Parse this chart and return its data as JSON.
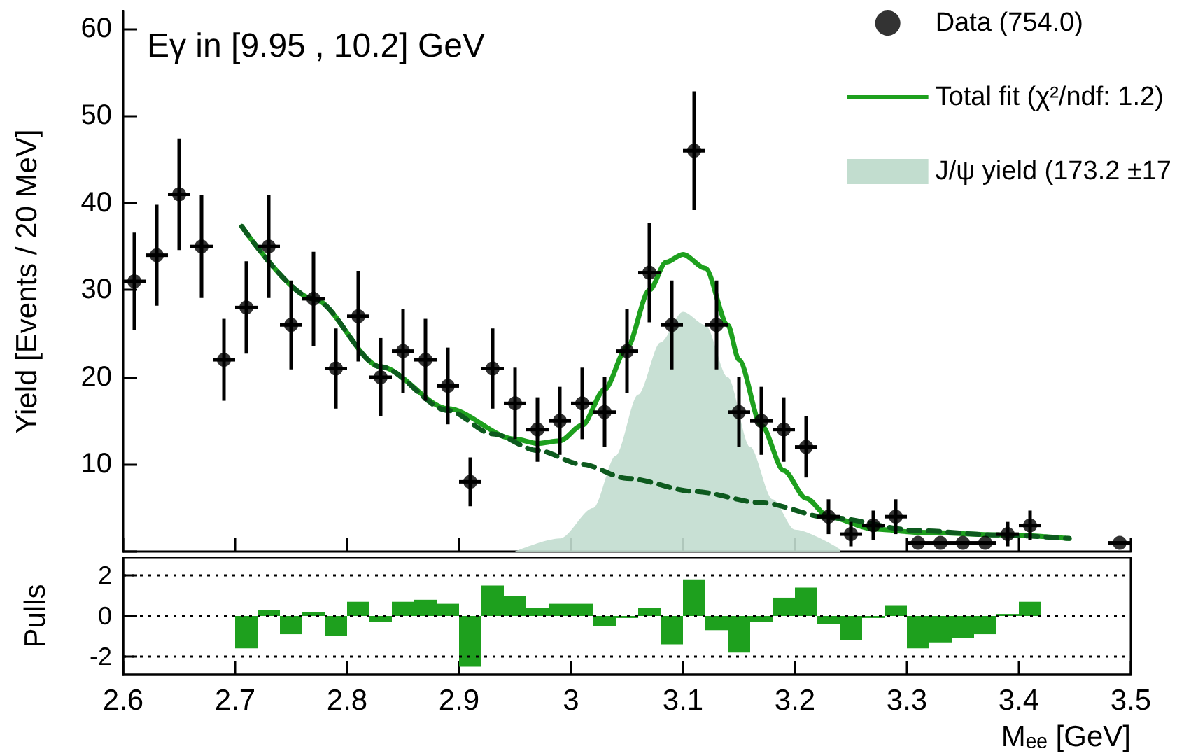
{
  "chart_data": [
    {
      "type": "scatter",
      "title": "Eγ in [9.95 , 10.2] GeV",
      "ylabel": "Yield [Events / 20 MeV]",
      "xlim": [
        2.6,
        3.5
      ],
      "ylim": [
        0,
        62
      ],
      "xticks": [
        2.6,
        2.7,
        2.8,
        2.9,
        3,
        3.1,
        3.2,
        3.3,
        3.4,
        3.5
      ],
      "yticks": [
        {
          "value": 0,
          "label": null
        },
        10,
        20,
        30,
        40,
        50,
        60
      ],
      "tick_labels": "y",
      "grid": false,
      "legend": "top right",
      "series": [
        {
          "type": "scatter",
          "name": "Data (754.0)",
          "color": "#000000",
          "marker": "circle",
          "x": [
            2.61,
            2.63,
            2.65,
            2.67,
            2.69,
            2.71,
            2.73,
            2.75,
            2.77,
            2.79,
            2.81,
            2.83,
            2.85,
            2.87,
            2.89,
            2.91,
            2.93,
            2.95,
            2.97,
            2.99,
            3.01,
            3.03,
            3.05,
            3.07,
            3.09,
            3.11,
            3.13,
            3.15,
            3.17,
            3.19,
            3.21,
            3.23,
            3.25,
            3.27,
            3.29,
            3.31,
            3.33,
            3.35,
            3.37,
            3.39,
            3.41,
            3.49
          ],
          "values": [
            31,
            34,
            41,
            35,
            22,
            28,
            35,
            26,
            29,
            21,
            27,
            20,
            23,
            22,
            19,
            8,
            21,
            17,
            14,
            15,
            17,
            16,
            23,
            32,
            26,
            46,
            26,
            16,
            15,
            14,
            12,
            4,
            2,
            3,
            4,
            1,
            1,
            1,
            1,
            2,
            3,
            1
          ],
          "errors": [
            5.6,
            5.8,
            6.4,
            5.9,
            4.7,
            5.3,
            5.9,
            5.1,
            5.4,
            4.6,
            5.2,
            4.5,
            4.8,
            4.7,
            4.4,
            2.8,
            4.6,
            4.1,
            3.7,
            3.9,
            4.1,
            4.0,
            4.8,
            5.7,
            5.1,
            6.8,
            5.1,
            4.0,
            3.9,
            3.7,
            3.5,
            2.0,
            1.4,
            1.7,
            2.0,
            null,
            null,
            null,
            null,
            1.4,
            1.7,
            null
          ],
          "xerrors": [
            0.01,
            0.01,
            0.01,
            0.01,
            0.01,
            0.01,
            0.01,
            0.01,
            0.01,
            0.01,
            0.01,
            0.01,
            0.01,
            0.01,
            0.01,
            0.01,
            0.01,
            0.01,
            0.01,
            0.01,
            0.01,
            0.01,
            0.01,
            0.01,
            0.01,
            0.01,
            0.01,
            0.01,
            0.01,
            0.01,
            0.01,
            0.01,
            0.01,
            0.01,
            0.01,
            0.01,
            0.01,
            0.01,
            0.01,
            0.01,
            0.01,
            0.01
          ]
        },
        {
          "type": "line",
          "name": "Total fit (χ²/ndf: 1.2)",
          "color": "#1ea01e",
          "line_style": "solid",
          "x": [
            2.706,
            2.77,
            2.83,
            2.89,
            2.95,
            2.97,
            2.99,
            3.01,
            3.03,
            3.05,
            3.07,
            3.085,
            3.1,
            3.12,
            3.14,
            3.15,
            3.17,
            3.19,
            3.21,
            3.23,
            3.27,
            3.31,
            3.39,
            3.445
          ],
          "values": [
            37.3,
            29,
            21.2,
            16.4,
            12.9,
            12.4,
            12.7,
            14.5,
            18.6,
            23.4,
            30,
            33.2,
            34.1,
            32.5,
            26,
            22,
            14.5,
            9.3,
            6.1,
            4,
            2.6,
            2.2,
            1.9,
            1.5
          ]
        },
        {
          "type": "line",
          "color": "#0d5a1e",
          "line_style": "dashed",
          "x": [
            2.706,
            2.77,
            2.83,
            2.89,
            2.93,
            2.97,
            3.01,
            3.05,
            3.11,
            3.17,
            3.23,
            3.31,
            3.38,
            3.445
          ],
          "values": [
            37.3,
            29,
            21.2,
            16.2,
            13.5,
            11.6,
            10,
            8.4,
            6.9,
            5.6,
            3.9,
            2.4,
            1.9,
            1.5
          ]
        },
        {
          "type": "area",
          "name": "J/ψ yield (173.2 ±17",
          "color": "#c2ddcf",
          "x": [
            2.95,
            2.99,
            3.02,
            3.04,
            3.06,
            3.08,
            3.1,
            3.12,
            3.14,
            3.16,
            3.18,
            3.2,
            3.24
          ],
          "values": [
            0,
            1.5,
            5,
            11,
            18,
            24,
            27.5,
            26,
            20,
            12,
            6,
            2.5,
            0.3
          ]
        }
      ]
    },
    {
      "type": "histogram",
      "ylabel": "Pulls",
      "xlabel": "Mₑₑ [GeV]",
      "color": "#1ea01e",
      "xlim": [
        2.6,
        3.5
      ],
      "ylim": [
        -2.9,
        2.9
      ],
      "xticks": [
        2.6,
        2.7,
        2.8,
        2.9,
        3,
        3.1,
        3.2,
        3.3,
        3.4,
        3.5
      ],
      "yticks": [
        -2,
        0,
        2
      ],
      "grid": false,
      "bins": [
        2.7,
        2.72,
        2.74,
        2.76,
        2.78,
        2.8,
        2.82,
        2.84,
        2.86,
        2.88,
        2.9,
        2.92,
        2.94,
        2.96,
        2.98,
        3.0,
        3.02,
        3.04,
        3.06,
        3.08,
        3.1,
        3.12,
        3.14,
        3.16,
        3.18,
        3.2,
        3.22,
        3.24,
        3.26,
        3.28,
        3.3,
        3.32,
        3.34,
        3.36,
        3.38,
        3.4,
        3.42
      ],
      "values": [
        -1.6,
        0.3,
        -0.9,
        0.2,
        -1.0,
        0.7,
        -0.3,
        0.7,
        0.8,
        0.6,
        -2.5,
        1.5,
        1.0,
        0.4,
        0.6,
        0.6,
        -0.5,
        -0.1,
        0.4,
        -1.4,
        1.8,
        -0.7,
        -1.8,
        -0.3,
        0.9,
        1.4,
        -0.4,
        -1.2,
        -0.1,
        0.5,
        -1.6,
        -1.3,
        -1.1,
        -0.9,
        0.1,
        0.7
      ],
      "ref_lines": [
        {
          "axis": "y",
          "value": 2,
          "color": "#000000",
          "line_style": "dotted"
        },
        {
          "axis": "y",
          "value": 0,
          "color": "#000000",
          "line_style": "dotted"
        },
        {
          "axis": "y",
          "value": -2,
          "color": "#000000",
          "line_style": "dotted"
        }
      ]
    }
  ]
}
